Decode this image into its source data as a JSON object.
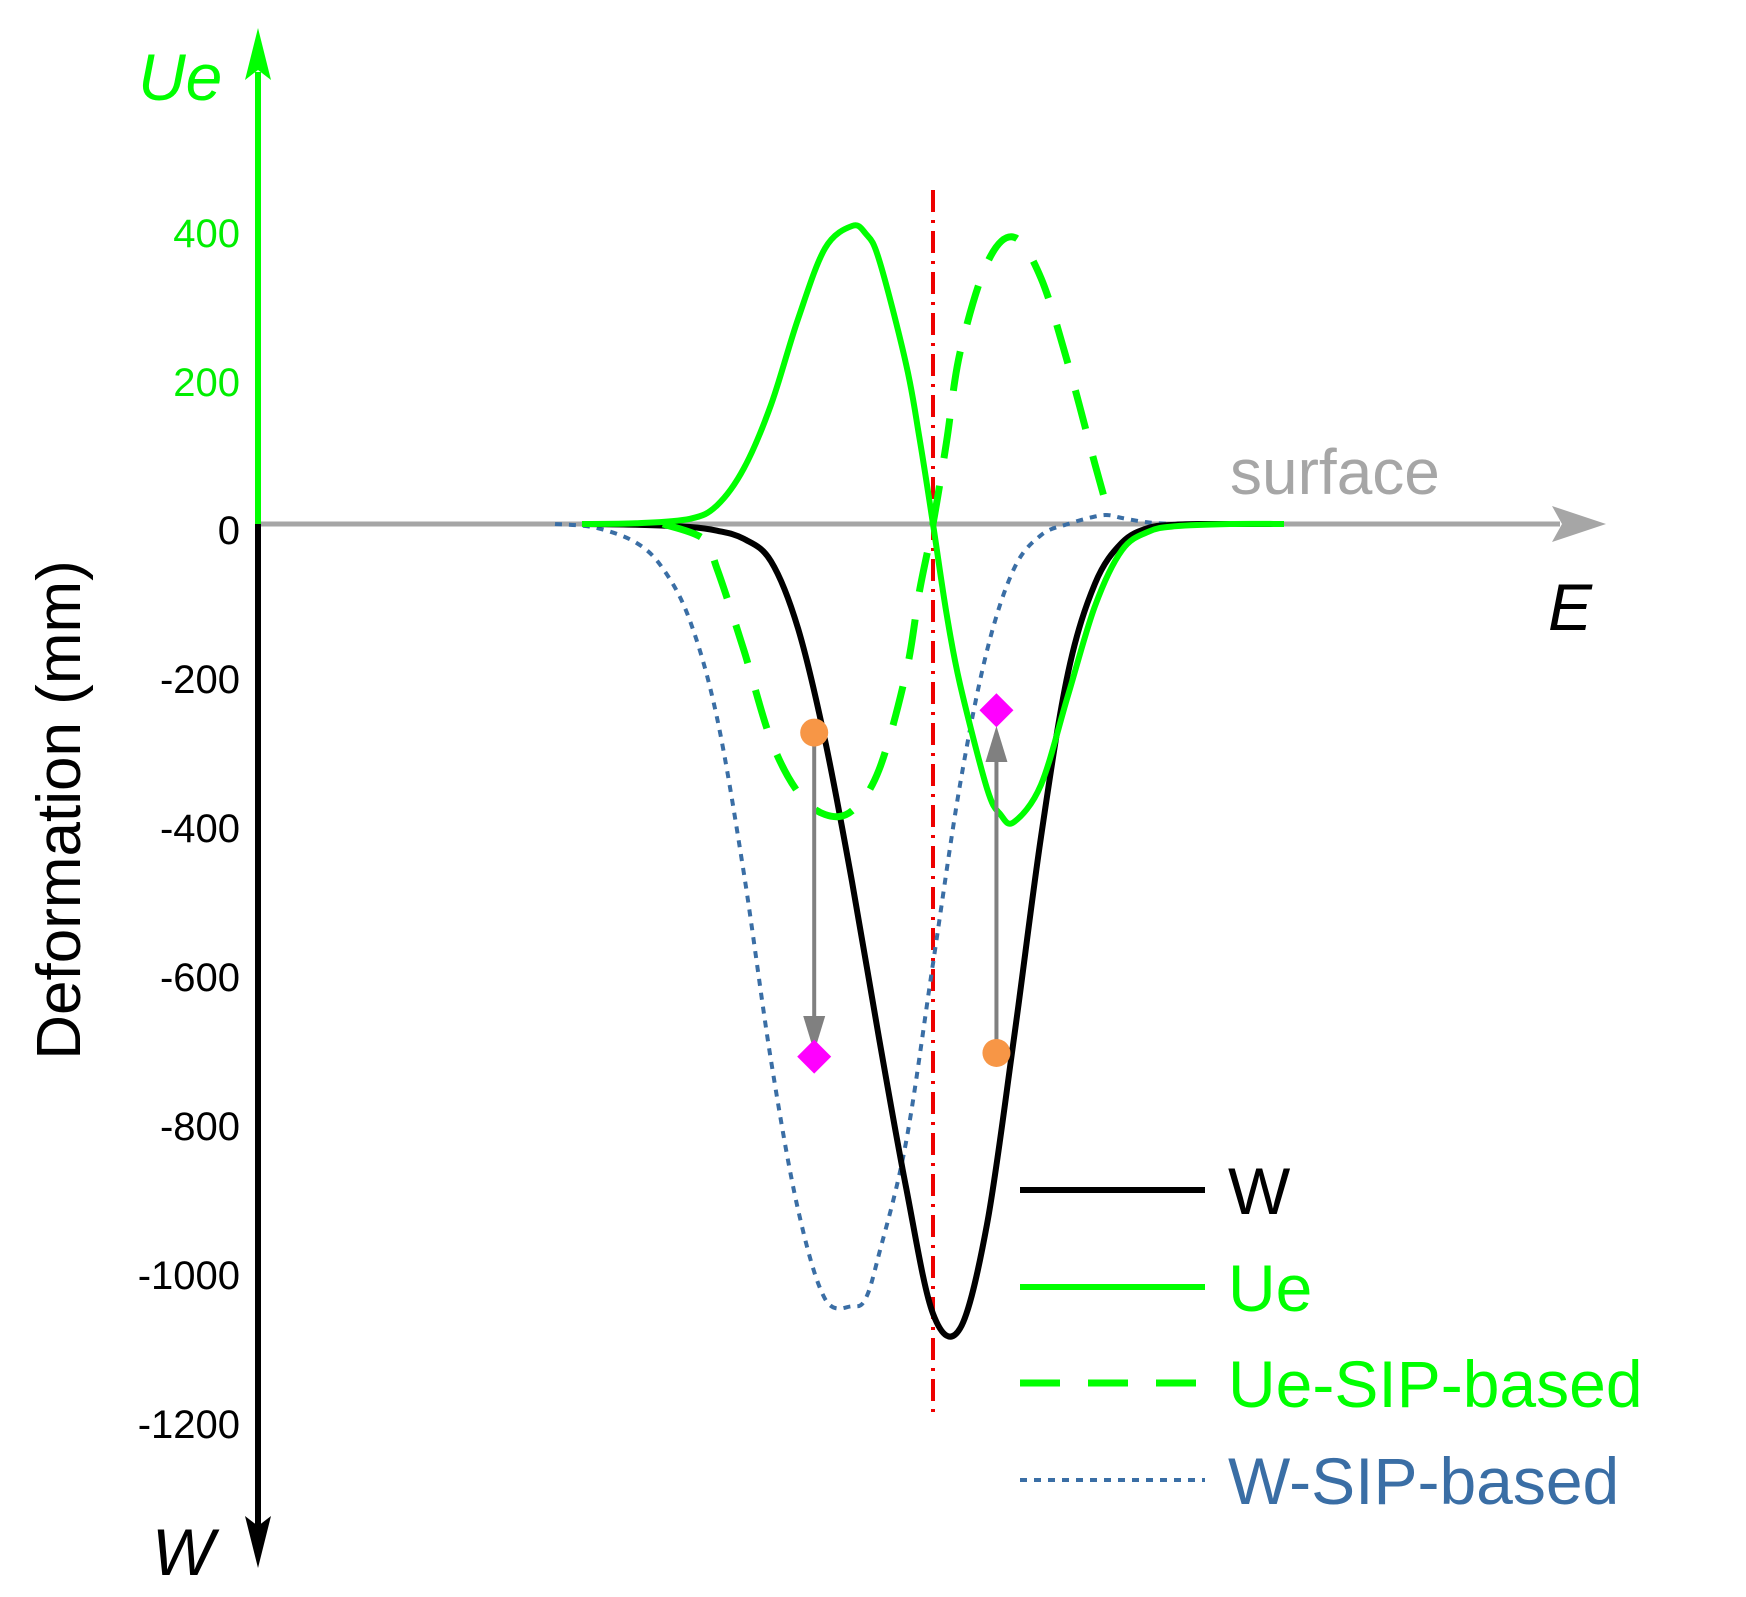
{
  "colors": {
    "w": "#000000",
    "ue": "#00ff00",
    "ue_tick": "#00ee00",
    "w_sip": "#3a6ea5",
    "axis_gray": "#a6a6a6",
    "center_line": "#ee0000",
    "arrow_gray": "#808080",
    "marker_orange": "#f79646",
    "marker_magenta": "#ff00ff"
  },
  "chart_data": {
    "type": "line",
    "title": "",
    "ylabel": "Deformation (mm)",
    "xlabel": "E",
    "x_range": [
      0,
      100
    ],
    "ylim": [
      -1320,
      700
    ],
    "axis_labels": {
      "ue": "Ue",
      "w": "W",
      "e": "E",
      "surface": "surface"
    },
    "ue_ticks": [
      {
        "value": 400,
        "label": "400"
      },
      {
        "value": 200,
        "label": "200"
      }
    ],
    "w_ticks": [
      {
        "value": 0,
        "label": "0"
      },
      {
        "value": -200,
        "label": "-200"
      },
      {
        "value": -400,
        "label": "-400"
      },
      {
        "value": -600,
        "label": "-600"
      },
      {
        "value": -800,
        "label": "-800"
      },
      {
        "value": -1000,
        "label": "-1000"
      },
      {
        "value": -1200,
        "label": "-1200"
      }
    ],
    "centerline_x": 50,
    "series": [
      {
        "name": "W",
        "style": "solid",
        "x": [
          24,
          28,
          32,
          34,
          36,
          38,
          40,
          42,
          44,
          46,
          48,
          50,
          52,
          54,
          56,
          58,
          60,
          62,
          64,
          66,
          68,
          70,
          72,
          74,
          76
        ],
        "values": [
          0,
          -1,
          -4,
          -9,
          -20,
          -50,
          -140,
          -290,
          -480,
          -690,
          -890,
          -1060,
          -1080,
          -940,
          -690,
          -420,
          -200,
          -80,
          -25,
          -5,
          -1,
          0,
          0,
          0,
          0
        ]
      },
      {
        "name": "Ue",
        "style": "solid",
        "x": [
          24,
          28,
          32,
          34,
          36,
          38,
          40,
          42,
          44,
          45,
          46,
          48,
          49,
          50,
          51,
          52,
          54,
          55,
          56,
          58,
          60,
          62,
          64,
          66,
          68,
          72,
          76
        ],
        "values": [
          0,
          1,
          7,
          25,
          75,
          160,
          275,
          370,
          400,
          390,
          355,
          215,
          115,
          0,
          -120,
          -215,
          -355,
          -390,
          -400,
          -350,
          -230,
          -110,
          -35,
          -10,
          -3,
          0,
          0
        ]
      },
      {
        "name": "Ue-SIP-based",
        "style": "dashed",
        "x": [
          30,
          33,
          34,
          36,
          38,
          40,
          42,
          44,
          46,
          48,
          49,
          50,
          51,
          52,
          54,
          56,
          58,
          60,
          62,
          63
        ],
        "values": [
          0,
          -20,
          -60,
          -170,
          -290,
          -360,
          -390,
          -385,
          -330,
          -200,
          -90,
          0,
          110,
          230,
          350,
          385,
          330,
          215,
          80,
          15
        ]
      },
      {
        "name": "W-SIP-based",
        "style": "dotted",
        "x": [
          22,
          25,
          28,
          30,
          32,
          34,
          36,
          38,
          40,
          42,
          44,
          45,
          46,
          48,
          50,
          52,
          54,
          56,
          58,
          60,
          62,
          63,
          64,
          66,
          68
        ],
        "values": [
          0,
          -5,
          -25,
          -60,
          -130,
          -260,
          -470,
          -720,
          -920,
          -1040,
          -1050,
          -1040,
          -980,
          -830,
          -590,
          -350,
          -170,
          -60,
          -15,
          0,
          10,
          12,
          8,
          2,
          0
        ]
      }
    ],
    "arrows": [
      {
        "x": 41.2,
        "from": -280,
        "to": -690,
        "direction": "down"
      },
      {
        "x": 54.7,
        "from": -710,
        "to": -290,
        "direction": "up"
      }
    ],
    "markers": [
      {
        "shape": "circle",
        "color": "orange",
        "x": 41.2,
        "y": -280
      },
      {
        "shape": "diamond",
        "color": "magenta",
        "x": 41.2,
        "y": -715
      },
      {
        "shape": "circle",
        "color": "orange",
        "x": 54.7,
        "y": -710
      },
      {
        "shape": "diamond",
        "color": "magenta",
        "x": 54.7,
        "y": -250
      }
    ],
    "legend": {
      "position": "bottom-right",
      "entries": [
        "W",
        "Ue",
        "Ue-SIP-based",
        "W-SIP-based"
      ]
    }
  }
}
